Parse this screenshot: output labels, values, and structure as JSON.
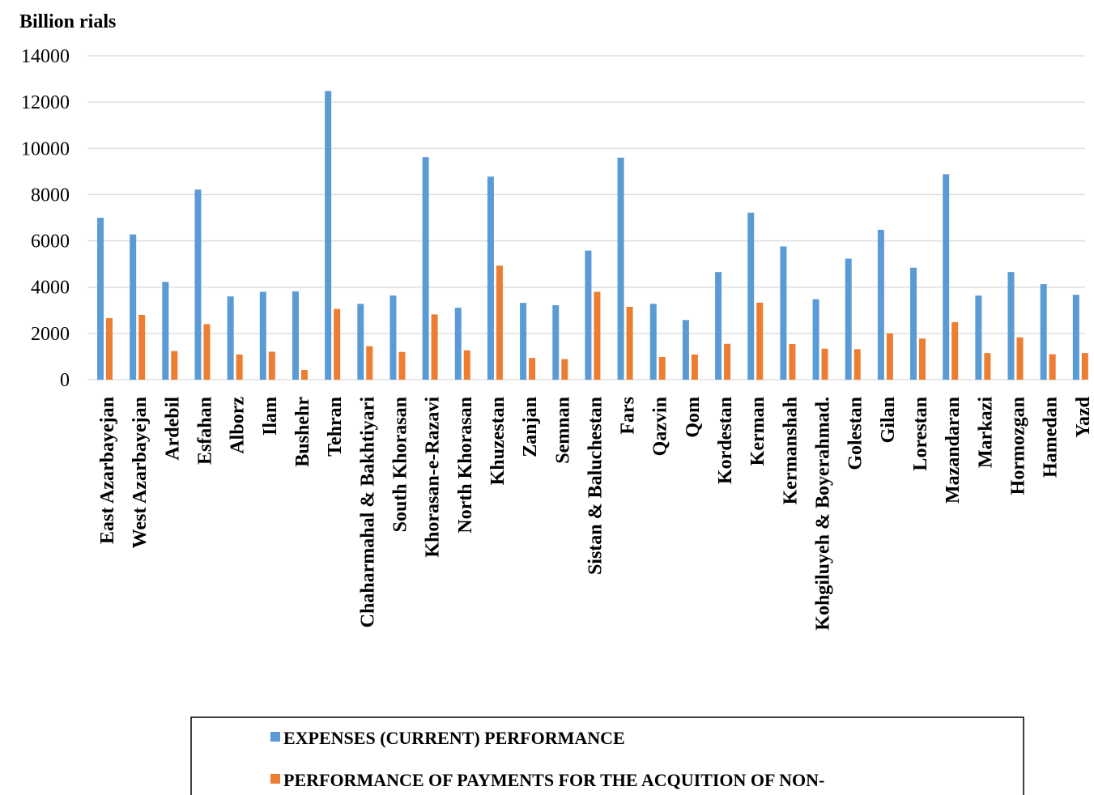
{
  "chart_data": {
    "type": "bar",
    "ylabel": "Billion rials",
    "ylim": [
      0,
      14000
    ],
    "yticks": [
      0,
      2000,
      4000,
      6000,
      8000,
      10000,
      12000,
      14000
    ],
    "grid": true,
    "legend_position": "bottom",
    "categories": [
      "East Azarbayejan",
      "West Azarbayejan",
      "Ardebil",
      "Esfahan",
      "Alborz",
      "Ilam",
      "Bushehr",
      "Tehran",
      "Chaharmahal & Bakhtiyari",
      "South Khorasan",
      "Khorasan-e-Razavi",
      "North Khorasan",
      "Khuzestan",
      "Zanjan",
      "Semnan",
      "Sistan & Baluchestan",
      "Fars",
      "Qazvin",
      "Qom",
      "Kordestan",
      "Kerman",
      "Kermanshah",
      "Kohgiluyeh & Boyerahmad.",
      "Golestan",
      "Gilan",
      "Lorestan",
      "Mazandaran",
      "Markazi",
      "Hormozgan",
      "Hamedan",
      "Yazd"
    ],
    "series": [
      {
        "name": "EXPENSES (CURRENT) PERFORMANCE",
        "color": "#5B9BD5",
        "values": [
          7000,
          6280,
          4230,
          8220,
          3600,
          3800,
          3820,
          12480,
          3280,
          3640,
          9620,
          3110,
          8780,
          3320,
          3220,
          5580,
          9600,
          3280,
          2580,
          4650,
          7220,
          5760,
          3480,
          5230,
          6480,
          4840,
          8880,
          3640,
          4650,
          4130,
          3670
        ]
      },
      {
        "name": "PERFORMANCE OF PAYMENTS  FOR THE ACQUITION OF NON-",
        "color": "#ED7D31",
        "values": [
          2660,
          2800,
          1240,
          2400,
          1090,
          1210,
          420,
          3060,
          1450,
          1200,
          2820,
          1270,
          4930,
          940,
          890,
          3800,
          3150,
          980,
          1090,
          1550,
          3330,
          1540,
          1340,
          1320,
          2000,
          1780,
          2490,
          1150,
          1830,
          1100,
          1150
        ]
      }
    ]
  }
}
